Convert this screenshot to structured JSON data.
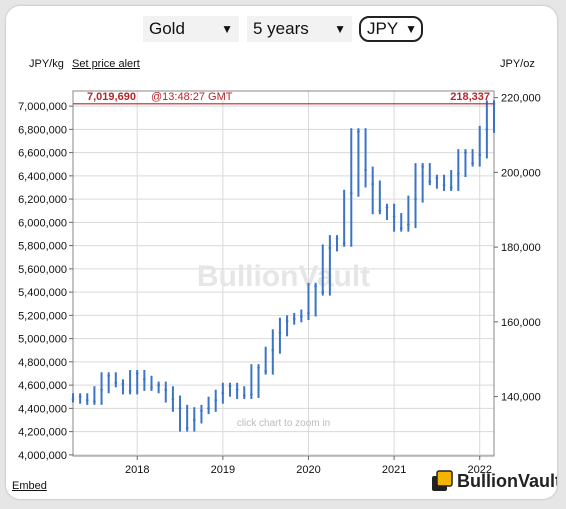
{
  "controls": {
    "metal": "Gold",
    "period": "5 years",
    "currency": "JPY"
  },
  "left_unit": "JPY/kg",
  "right_unit": "JPY/oz",
  "alert_label": "Set price alert",
  "embed_label": "Embed",
  "zoom_hint": "click chart to zoom in",
  "watermark": "BullionVault",
  "brand_name": "BullionVault",
  "colors": {
    "series": "#3b74c4",
    "price_line": "#b5262b",
    "price_text": "#b5262b",
    "grid": "#d9d9d9",
    "logo_gold": "#f5b400"
  },
  "chart_data": {
    "type": "line",
    "title": "",
    "xlabel": "",
    "ylabel": "JPY/kg",
    "y2label": "JPY/oz",
    "x_ticks": [
      "2018",
      "2019",
      "2020",
      "2021",
      "2022"
    ],
    "xlim": [
      "2017-04",
      "2022-03"
    ],
    "ylim": [
      3990000,
      7130000
    ],
    "y_ticks": [
      4000000,
      4200000,
      4400000,
      4600000,
      4800000,
      5000000,
      5200000,
      5400000,
      5600000,
      5800000,
      6000000,
      6200000,
      6400000,
      6600000,
      6800000,
      7000000
    ],
    "y_tick_labels": [
      "4,000,000",
      "4,200,000",
      "4,400,000",
      "4,600,000",
      "4,800,000",
      "5,000,000",
      "5,200,000",
      "5,400,000",
      "5,600,000",
      "5,800,000",
      "6,000,000",
      "6,200,000",
      "6,400,000",
      "6,600,000",
      "6,800,000",
      "7,000,000"
    ],
    "y2_ticks": [
      140000,
      160000,
      180000,
      200000,
      220000
    ],
    "y2_tick_labels": [
      "140,000",
      "160,000",
      "180,000",
      "200,000",
      "220,000"
    ],
    "current": {
      "price_kg": 7019690,
      "price_kg_label": "7,019,690",
      "time_label": "@13:48:27 GMT",
      "price_oz_label": "218,337"
    },
    "series": [
      {
        "x": [
          "2017-04",
          "2017-05",
          "2017-06",
          "2017-07",
          "2017-08",
          "2017-09",
          "2017-10",
          "2017-11",
          "2017-12",
          "2018-01",
          "2018-02",
          "2018-03",
          "2018-04",
          "2018-05",
          "2018-06",
          "2018-07",
          "2018-08",
          "2018-09",
          "2018-10",
          "2018-11",
          "2018-12",
          "2019-01",
          "2019-02",
          "2019-03",
          "2019-04",
          "2019-05",
          "2019-06",
          "2019-07",
          "2019-08",
          "2019-09",
          "2019-10",
          "2019-11",
          "2019-12",
          "2020-01",
          "2020-02",
          "2020-03",
          "2020-04",
          "2020-05",
          "2020-06",
          "2020-07",
          "2020-08",
          "2020-09",
          "2020-10",
          "2020-11",
          "2020-12",
          "2021-01",
          "2021-02",
          "2021-03",
          "2021-04",
          "2021-05",
          "2021-06",
          "2021-07",
          "2021-08",
          "2021-09",
          "2021-10",
          "2021-11",
          "2021-12",
          "2022-01",
          "2022-02",
          "2022-03"
        ],
        "values": [
          4480000,
          4500000,
          4470000,
          4460000,
          4560000,
          4680000,
          4620000,
          4610000,
          4550000,
          4700000,
          4650000,
          4580000,
          4600000,
          4560000,
          4480000,
          4400000,
          4230000,
          4300000,
          4380000,
          4400000,
          4470000,
          4530000,
          4590000,
          4560000,
          4510000,
          4520000,
          4750000,
          4720000,
          4900000,
          5050000,
          5150000,
          5170000,
          5190000,
          5220000,
          5450000,
          5400000,
          5780000,
          5860000,
          5820000,
          6250000,
          6780000,
          6450000,
          6330000,
          6100000,
          6130000,
          6050000,
          5950000,
          5980000,
          6200000,
          6480000,
          6350000,
          6380000,
          6320000,
          6300000,
          6420000,
          6600000,
          6510000,
          6580000,
          6800000,
          7019690
        ]
      }
    ]
  }
}
